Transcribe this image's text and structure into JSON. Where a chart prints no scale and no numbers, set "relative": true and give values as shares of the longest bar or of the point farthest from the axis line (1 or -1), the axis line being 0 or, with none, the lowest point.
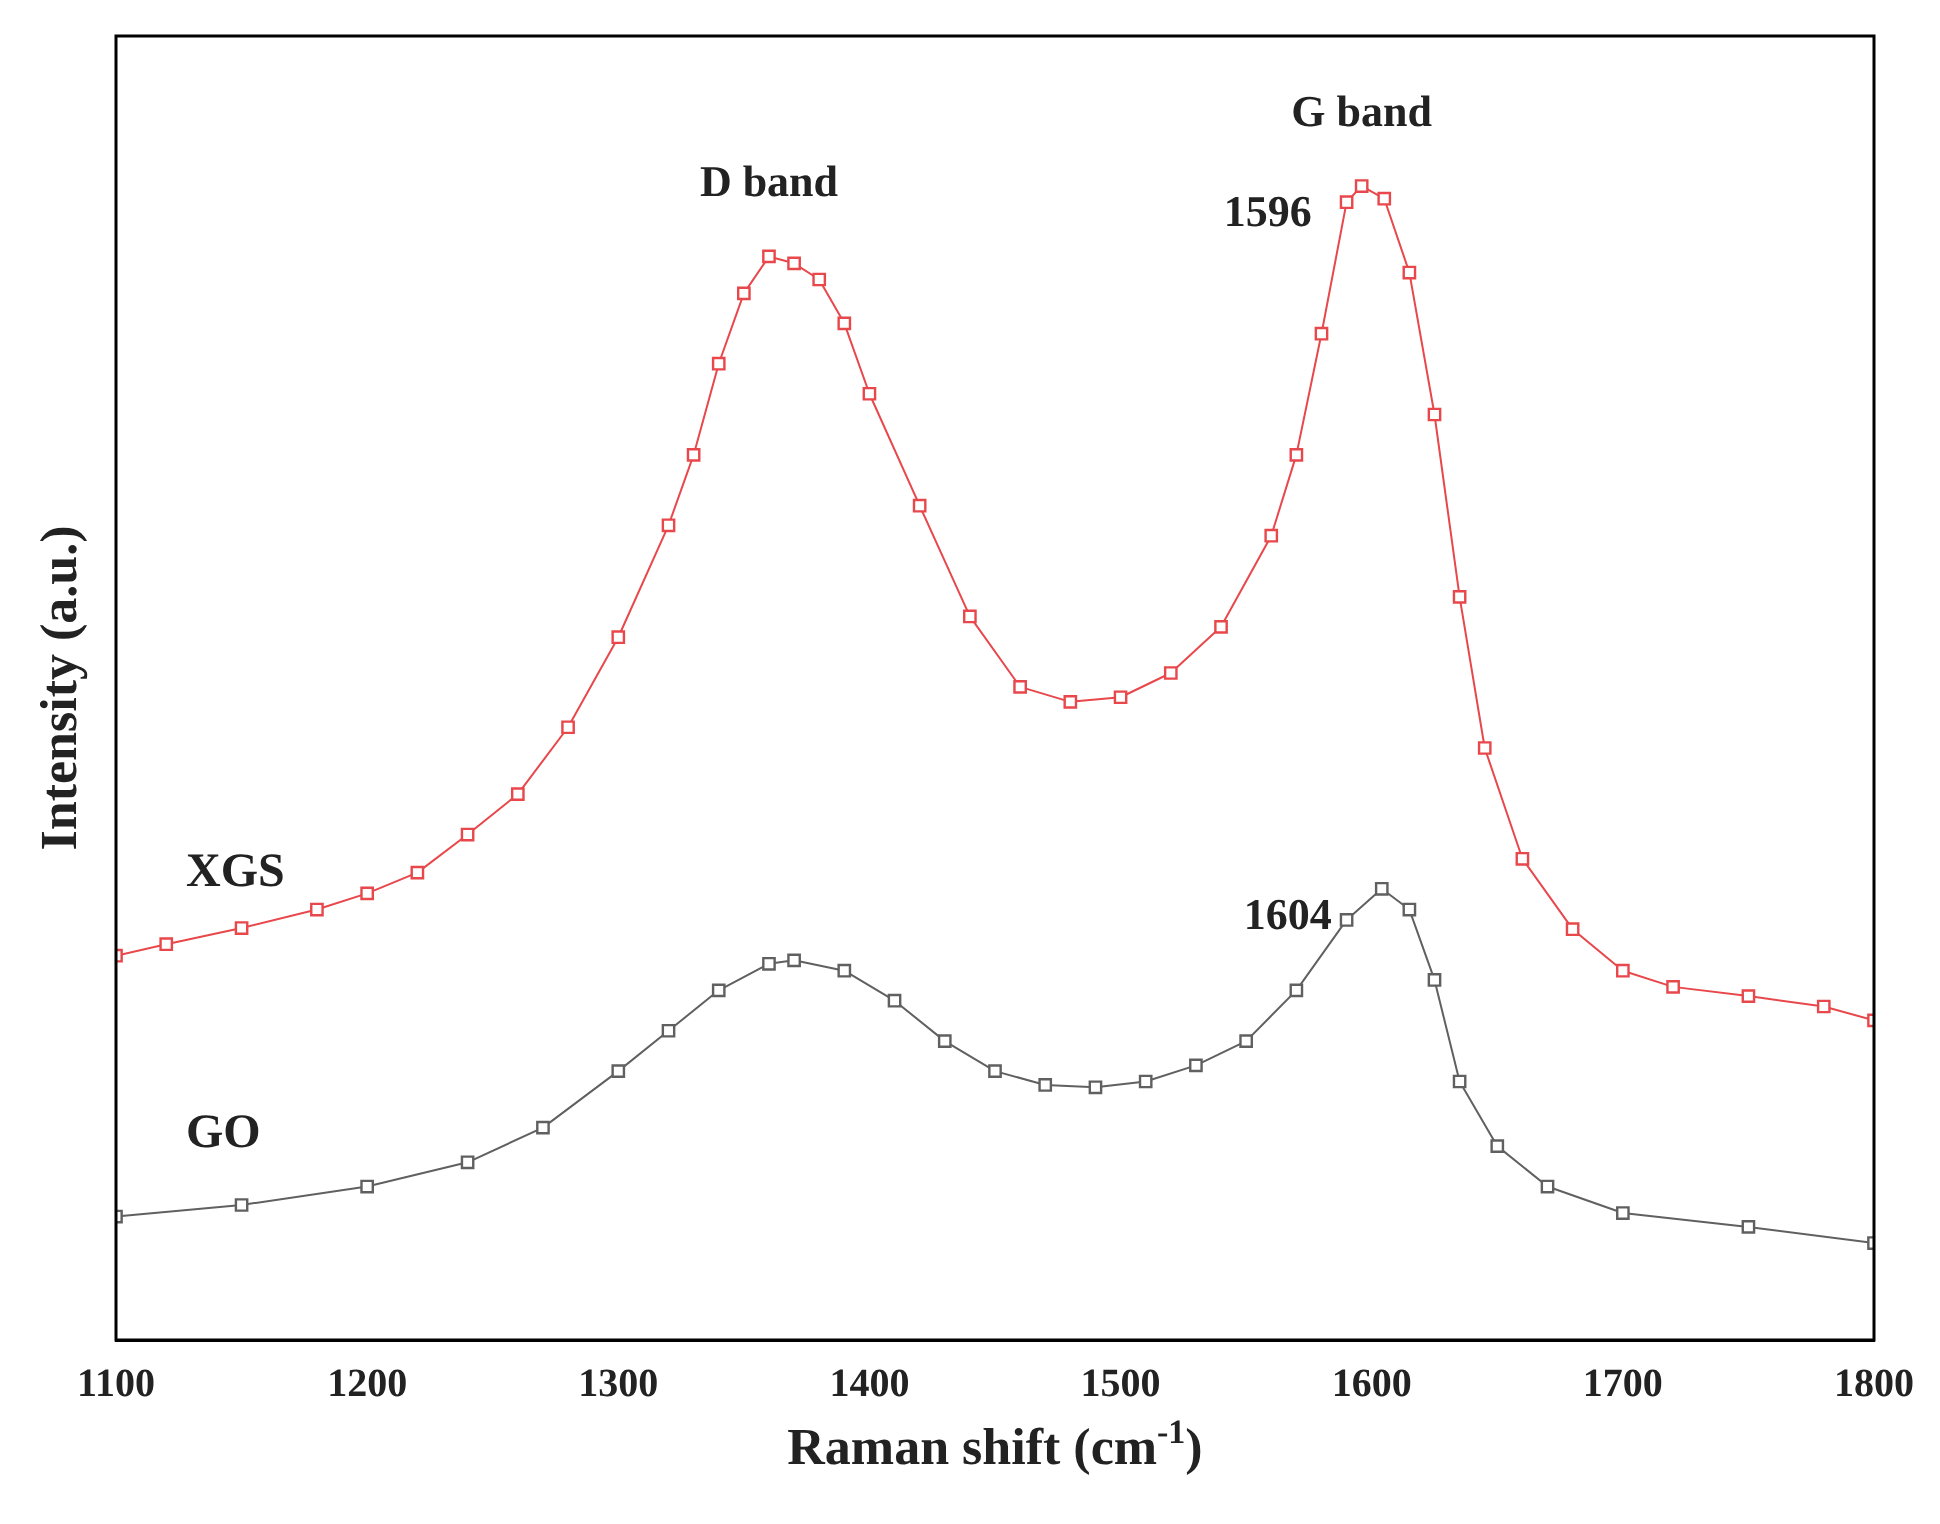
{
  "chart_data": {
    "type": "line",
    "relative": true,
    "xlabel": "Raman shift (cm$^{-1}$)",
    "ylabel": "Intensity (a.u.)",
    "xlim": [
      1100,
      1800
    ],
    "xticks": [
      1100,
      1200,
      1300,
      1400,
      1500,
      1600,
      1700,
      1800
    ],
    "marker": "square",
    "line_style": "solid",
    "grid": false,
    "legend": false,
    "tick_labels": "x",
    "series": [
      {
        "name": "XGS",
        "color": "#e8474b",
        "x": [
          1100,
          1120,
          1150,
          1180,
          1200,
          1220,
          1240,
          1260,
          1280,
          1300,
          1320,
          1330,
          1340,
          1350,
          1360,
          1370,
          1380,
          1390,
          1400,
          1420,
          1440,
          1460,
          1480,
          1500,
          1520,
          1540,
          1560,
          1570,
          1580,
          1590,
          1596,
          1605,
          1615,
          1625,
          1635,
          1645,
          1660,
          1680,
          1700,
          1720,
          1750,
          1780,
          1800
        ],
        "values": [
          0.333,
          0.343,
          0.357,
          0.373,
          0.387,
          0.405,
          0.438,
          0.473,
          0.531,
          0.609,
          0.706,
          0.767,
          0.846,
          0.907,
          0.939,
          0.933,
          0.919,
          0.881,
          0.82,
          0.723,
          0.627,
          0.566,
          0.553,
          0.557,
          0.578,
          0.618,
          0.697,
          0.767,
          0.872,
          0.986,
          1,
          0.989,
          0.925,
          0.802,
          0.644,
          0.513,
          0.417,
          0.356,
          0.32,
          0.306,
          0.298,
          0.289,
          0.277
        ]
      },
      {
        "name": "GO",
        "color": "#606060",
        "x": [
          1100,
          1150,
          1200,
          1240,
          1270,
          1300,
          1320,
          1340,
          1360,
          1370,
          1390,
          1410,
          1430,
          1450,
          1470,
          1490,
          1510,
          1530,
          1550,
          1570,
          1590,
          1604,
          1615,
          1625,
          1635,
          1650,
          1670,
          1700,
          1750,
          1800
        ],
        "values": [
          0.107,
          0.117,
          0.133,
          0.154,
          0.184,
          0.233,
          0.268,
          0.303,
          0.326,
          0.329,
          0.32,
          0.294,
          0.259,
          0.233,
          0.221,
          0.219,
          0.224,
          0.238,
          0.259,
          0.303,
          0.364,
          0.391,
          0.373,
          0.312,
          0.224,
          0.168,
          0.133,
          0.11,
          0.098,
          0.084
        ]
      }
    ],
    "annotations": [
      {
        "text": "D band",
        "x": 1360,
        "y": 0.939
      },
      {
        "text": "G band",
        "x": 1596,
        "y": 1
      },
      {
        "text": "1596",
        "x": 1596,
        "y": 1
      },
      {
        "text": "1604",
        "x": 1604,
        "y": 0.391
      }
    ]
  }
}
